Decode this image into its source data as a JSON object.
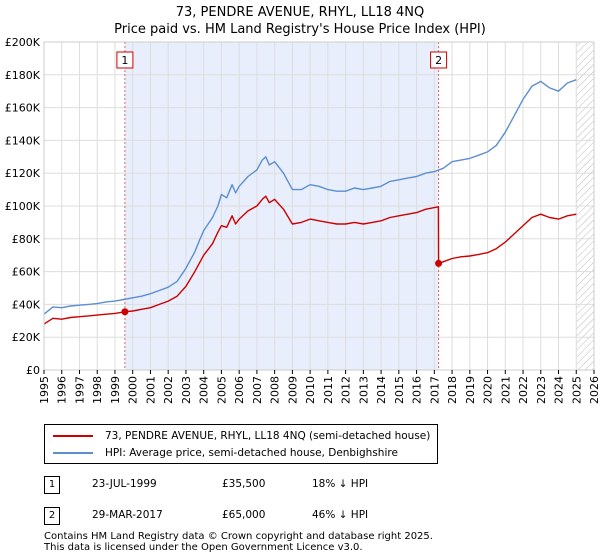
{
  "title_line1": "73, PENDRE AVENUE, RHYL, LL18 4NQ",
  "title_line2": "Price paid vs. HM Land Registry's House Price Index (HPI)",
  "chart_data": {
    "type": "line",
    "x_range": [
      1995,
      2026
    ],
    "y_range": [
      0,
      200000
    ],
    "y_ticks": [
      {
        "value": 0,
        "label": "£0"
      },
      {
        "value": 20000,
        "label": "£20K"
      },
      {
        "value": 40000,
        "label": "£40K"
      },
      {
        "value": 60000,
        "label": "£60K"
      },
      {
        "value": 80000,
        "label": "£80K"
      },
      {
        "value": 100000,
        "label": "£100K"
      },
      {
        "value": 120000,
        "label": "£120K"
      },
      {
        "value": 140000,
        "label": "£140K"
      },
      {
        "value": 160000,
        "label": "£160K"
      },
      {
        "value": 180000,
        "label": "£180K"
      },
      {
        "value": 200000,
        "label": "£200K"
      }
    ],
    "x_ticks": [
      "1995",
      "1996",
      "1997",
      "1998",
      "1999",
      "2000",
      "2001",
      "2002",
      "2003",
      "2004",
      "2005",
      "2006",
      "2007",
      "2008",
      "2009",
      "2010",
      "2011",
      "2012",
      "2013",
      "2014",
      "2015",
      "2016",
      "2017",
      "2018",
      "2019",
      "2020",
      "2021",
      "2022",
      "2023",
      "2024",
      "2025",
      "2026"
    ],
    "shaded_region": [
      1999.56,
      2017.24
    ],
    "data_end_year": 2025.0,
    "series": [
      {
        "name": "HPI: Average price, semi-detached house, Denbighshire",
        "color": "#5b8fd1",
        "points": [
          [
            1995.0,
            34000
          ],
          [
            1995.5,
            38500
          ],
          [
            1996.0,
            38000
          ],
          [
            1996.5,
            39000
          ],
          [
            1997.0,
            39500
          ],
          [
            1997.5,
            40000
          ],
          [
            1998.0,
            40500
          ],
          [
            1998.5,
            41500
          ],
          [
            1999.0,
            42000
          ],
          [
            1999.5,
            43000
          ],
          [
            2000.0,
            44000
          ],
          [
            2000.5,
            45000
          ],
          [
            2001.0,
            46500
          ],
          [
            2001.5,
            48500
          ],
          [
            2002.0,
            50500
          ],
          [
            2002.5,
            54000
          ],
          [
            2003.0,
            62000
          ],
          [
            2003.5,
            72000
          ],
          [
            2003.8,
            80000
          ],
          [
            2004.0,
            85000
          ],
          [
            2004.5,
            93000
          ],
          [
            2004.8,
            100000
          ],
          [
            2005.0,
            107000
          ],
          [
            2005.3,
            105000
          ],
          [
            2005.6,
            113000
          ],
          [
            2005.8,
            108000
          ],
          [
            2006.0,
            112000
          ],
          [
            2006.5,
            118000
          ],
          [
            2007.0,
            122000
          ],
          [
            2007.3,
            128000
          ],
          [
            2007.5,
            130000
          ],
          [
            2007.7,
            125000
          ],
          [
            2008.0,
            127000
          ],
          [
            2008.5,
            120000
          ],
          [
            2009.0,
            110000
          ],
          [
            2009.5,
            110000
          ],
          [
            2010.0,
            113000
          ],
          [
            2010.5,
            112000
          ],
          [
            2011.0,
            110000
          ],
          [
            2011.5,
            109000
          ],
          [
            2012.0,
            109000
          ],
          [
            2012.5,
            111000
          ],
          [
            2013.0,
            110000
          ],
          [
            2013.5,
            111000
          ],
          [
            2014.0,
            112000
          ],
          [
            2014.5,
            115000
          ],
          [
            2015.0,
            116000
          ],
          [
            2015.5,
            117000
          ],
          [
            2016.0,
            118000
          ],
          [
            2016.5,
            120000
          ],
          [
            2017.0,
            121000
          ],
          [
            2017.5,
            123000
          ],
          [
            2018.0,
            127000
          ],
          [
            2018.5,
            128000
          ],
          [
            2019.0,
            129000
          ],
          [
            2019.5,
            131000
          ],
          [
            2020.0,
            133000
          ],
          [
            2020.5,
            137000
          ],
          [
            2021.0,
            145000
          ],
          [
            2021.5,
            155000
          ],
          [
            2022.0,
            165000
          ],
          [
            2022.5,
            173000
          ],
          [
            2023.0,
            176000
          ],
          [
            2023.5,
            172000
          ],
          [
            2024.0,
            170000
          ],
          [
            2024.5,
            175000
          ],
          [
            2025.0,
            177000
          ]
        ]
      },
      {
        "name": "73, PENDRE AVENUE, RHYL, LL18 4NQ (semi-detached house)",
        "color": "#cc0000",
        "points": [
          [
            1995.0,
            28000
          ],
          [
            1995.5,
            31500
          ],
          [
            1996.0,
            31000
          ],
          [
            1996.5,
            32000
          ],
          [
            1997.0,
            32500
          ],
          [
            1997.5,
            33000
          ],
          [
            1998.0,
            33500
          ],
          [
            1998.5,
            34000
          ],
          [
            1999.0,
            34500
          ],
          [
            1999.56,
            35500
          ],
          [
            2000.0,
            36000
          ],
          [
            2000.5,
            37000
          ],
          [
            2001.0,
            38000
          ],
          [
            2001.5,
            40000
          ],
          [
            2002.0,
            42000
          ],
          [
            2002.5,
            45000
          ],
          [
            2003.0,
            51000
          ],
          [
            2003.5,
            60000
          ],
          [
            2003.8,
            66000
          ],
          [
            2004.0,
            70000
          ],
          [
            2004.5,
            77000
          ],
          [
            2004.8,
            84000
          ],
          [
            2005.0,
            88000
          ],
          [
            2005.3,
            87000
          ],
          [
            2005.6,
            94000
          ],
          [
            2005.8,
            89000
          ],
          [
            2006.0,
            92000
          ],
          [
            2006.5,
            97000
          ],
          [
            2007.0,
            100000
          ],
          [
            2007.3,
            104000
          ],
          [
            2007.5,
            106000
          ],
          [
            2007.7,
            102000
          ],
          [
            2008.0,
            104000
          ],
          [
            2008.5,
            98000
          ],
          [
            2009.0,
            89000
          ],
          [
            2009.5,
            90000
          ],
          [
            2010.0,
            92000
          ],
          [
            2010.5,
            91000
          ],
          [
            2011.0,
            90000
          ],
          [
            2011.5,
            89000
          ],
          [
            2012.0,
            89000
          ],
          [
            2012.5,
            90000
          ],
          [
            2013.0,
            89000
          ],
          [
            2013.5,
            90000
          ],
          [
            2014.0,
            91000
          ],
          [
            2014.5,
            93000
          ],
          [
            2015.0,
            94000
          ],
          [
            2015.5,
            95000
          ],
          [
            2016.0,
            96000
          ],
          [
            2016.5,
            98000
          ],
          [
            2017.0,
            99000
          ],
          [
            2017.23,
            99500
          ],
          [
            2017.24,
            65000
          ],
          [
            2017.5,
            66000
          ],
          [
            2018.0,
            68000
          ],
          [
            2018.5,
            69000
          ],
          [
            2019.0,
            69500
          ],
          [
            2019.5,
            70500
          ],
          [
            2020.0,
            71500
          ],
          [
            2020.5,
            74000
          ],
          [
            2021.0,
            78000
          ],
          [
            2021.5,
            83000
          ],
          [
            2022.0,
            88000
          ],
          [
            2022.5,
            93000
          ],
          [
            2023.0,
            95000
          ],
          [
            2023.5,
            93000
          ],
          [
            2024.0,
            92000
          ],
          [
            2024.5,
            94000
          ],
          [
            2025.0,
            95000
          ]
        ]
      }
    ],
    "sales": [
      {
        "label": "1",
        "year": 1999.56,
        "price": 35500
      },
      {
        "label": "2",
        "year": 2017.24,
        "price": 65000
      }
    ]
  },
  "legend": {
    "property_label": "73, PENDRE AVENUE, RHYL, LL18 4NQ (semi-detached house)",
    "hpi_label": "HPI: Average price, semi-detached house, Denbighshire",
    "property_color": "#cc0000",
    "hpi_color": "#5b8fd1"
  },
  "transactions": [
    {
      "num": "1",
      "date": "23-JUL-1999",
      "price": "£35,500",
      "hpi": "18% ↓ HPI"
    },
    {
      "num": "2",
      "date": "29-MAR-2017",
      "price": "£65,000",
      "hpi": "46% ↓ HPI"
    }
  ],
  "footer": {
    "line1": "Contains HM Land Registry data © Crown copyright and database right 2025.",
    "line2": "This data is licensed under the Open Government Licence v3.0."
  }
}
